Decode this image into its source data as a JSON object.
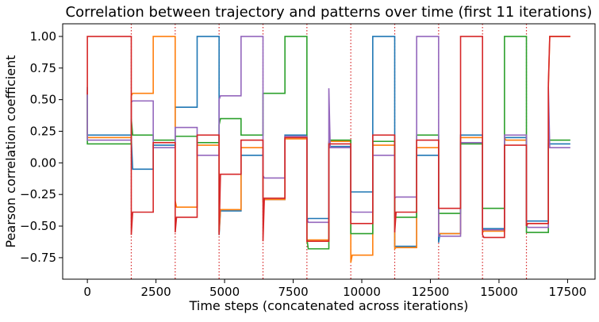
{
  "chart_data": {
    "type": "line",
    "title": "Correlation between trajectory and patterns over time (first 11 iterations)",
    "xlabel": "Time steps (concatenated across iterations)",
    "ylabel": "Pearson correlation coefficient",
    "xlim": [
      -900,
      18500
    ],
    "ylim": [
      -0.92,
      1.1
    ],
    "xticks": [
      0,
      2500,
      5000,
      7500,
      10000,
      12500,
      15000,
      17500
    ],
    "xtick_labels": [
      "0",
      "2500",
      "5000",
      "7500",
      "10000",
      "12500",
      "15000",
      "17500"
    ],
    "yticks": [
      -0.75,
      -0.5,
      -0.25,
      0.0,
      0.25,
      0.5,
      0.75,
      1.0
    ],
    "ytick_labels": [
      "−0.75",
      "−0.50",
      "−0.25",
      "0.00",
      "0.25",
      "0.50",
      "0.75",
      "1.00"
    ],
    "grid": false,
    "legend": "none",
    "iteration_boundaries": [
      1600,
      3200,
      4800,
      6400,
      8000,
      9600,
      11200,
      12800,
      14400,
      16000
    ],
    "boundary_style": {
      "color": "#d62728",
      "linestyle": "dotted"
    },
    "segments": [
      {
        "start": 0,
        "plateau_start": 0,
        "plateau_end": 1600
      },
      {
        "start": 1600,
        "plateau_start": 1650,
        "plateau_end": 2400
      },
      {
        "start": 2400,
        "plateau_start": 2400,
        "plateau_end": 3200
      },
      {
        "start": 3200,
        "plateau_start": 3250,
        "plateau_end": 4000
      },
      {
        "start": 4000,
        "plateau_start": 4000,
        "plateau_end": 4800
      },
      {
        "start": 4800,
        "plateau_start": 4850,
        "plateau_end": 5600
      },
      {
        "start": 5600,
        "plateau_start": 5600,
        "plateau_end": 6400
      },
      {
        "start": 6400,
        "plateau_start": 6450,
        "plateau_end": 7200
      },
      {
        "start": 7200,
        "plateau_start": 7200,
        "plateau_end": 8000
      },
      {
        "start": 8000,
        "plateau_start": 8050,
        "plateau_end": 8800
      },
      {
        "start": 8800,
        "plateau_start": 8850,
        "plateau_end": 9600
      },
      {
        "start": 9600,
        "plateau_start": 9650,
        "plateau_end": 10400
      },
      {
        "start": 10400,
        "plateau_start": 10400,
        "plateau_end": 11200
      },
      {
        "start": 11200,
        "plateau_start": 11250,
        "plateau_end": 12000
      },
      {
        "start": 12000,
        "plateau_start": 12000,
        "plateau_end": 12800
      },
      {
        "start": 12800,
        "plateau_start": 12850,
        "plateau_end": 13600
      },
      {
        "start": 13600,
        "plateau_start": 13600,
        "plateau_end": 14400
      },
      {
        "start": 14400,
        "plateau_start": 14450,
        "plateau_end": 15200
      },
      {
        "start": 15200,
        "plateau_start": 15250,
        "plateau_end": 16000
      },
      {
        "start": 16000,
        "plateau_start": 16050,
        "plateau_end": 16800
      },
      {
        "start": 16800,
        "plateau_start": 16850,
        "plateau_end": 17600
      }
    ],
    "series": [
      {
        "color": "#1f77b4",
        "spikes": [
          0.6,
          0.2,
          -0.05,
          0.44,
          1.0,
          -0.57,
          0.06,
          -0.29,
          0.22,
          -0.45,
          0.13,
          -0.23,
          1.0,
          -0.66,
          0.06,
          -0.63,
          0.22,
          -0.52,
          0.2,
          -0.46,
          0.15
        ],
        "plateau": [
          0.22,
          -0.05,
          0.14,
          0.44,
          1.0,
          -0.38,
          0.06,
          -0.29,
          0.22,
          -0.44,
          0.13,
          -0.23,
          1.0,
          -0.66,
          0.06,
          -0.56,
          0.22,
          -0.52,
          0.2,
          -0.46,
          0.15
        ]
      },
      {
        "color": "#ff7f0e",
        "spikes": [
          0.56,
          0.53,
          1.0,
          -0.3,
          0.14,
          -0.55,
          0.12,
          -0.3,
          0.19,
          -0.62,
          0.17,
          -0.79,
          0.14,
          -0.68,
          0.12,
          -0.56,
          0.2,
          -0.55,
          0.2,
          -0.49,
          0.6
        ],
        "plateau": [
          0.2,
          0.55,
          1.0,
          -0.35,
          0.14,
          -0.37,
          0.12,
          -0.29,
          0.19,
          -0.61,
          0.17,
          -0.73,
          0.14,
          -0.67,
          0.12,
          -0.56,
          0.2,
          -0.54,
          0.18,
          -0.48,
          1.0
        ]
      },
      {
        "color": "#2ca02c",
        "spikes": [
          0.54,
          0.35,
          0.18,
          0.21,
          0.16,
          0.3,
          0.22,
          0.55,
          1.0,
          -0.6,
          0.16,
          -0.56,
          0.17,
          -0.43,
          0.22,
          -0.4,
          0.15,
          -0.36,
          1.0,
          -0.55,
          0.18
        ],
        "plateau": [
          0.15,
          0.22,
          0.18,
          0.21,
          0.16,
          0.35,
          0.22,
          0.55,
          1.0,
          -0.68,
          0.18,
          -0.56,
          0.17,
          -0.43,
          0.22,
          -0.4,
          0.15,
          -0.36,
          1.0,
          -0.55,
          0.18
        ]
      },
      {
        "color": "#9467bd",
        "spikes": [
          0.58,
          0.48,
          0.12,
          0.28,
          0.06,
          0.5,
          1.0,
          -0.1,
          0.21,
          -0.44,
          0.59,
          -0.38,
          0.06,
          -0.28,
          1.0,
          -0.58,
          0.17,
          -0.53,
          0.22,
          -0.49,
          0.6
        ],
        "plateau": [
          0.18,
          0.49,
          0.12,
          0.28,
          0.06,
          0.53,
          1.0,
          -0.12,
          0.21,
          -0.47,
          0.12,
          -0.39,
          0.06,
          -0.27,
          1.0,
          -0.58,
          0.16,
          -0.53,
          0.22,
          -0.51,
          0.12
        ]
      },
      {
        "color": "#d62728",
        "spikes": [
          0.54,
          -0.57,
          0.16,
          -0.55,
          0.22,
          -0.57,
          0.18,
          -0.62,
          0.2,
          -0.62,
          0.15,
          -0.48,
          0.22,
          -0.55,
          0.18,
          -0.36,
          1.0,
          -0.57,
          0.14,
          -0.5,
          0.63
        ],
        "plateau": [
          1.0,
          -0.39,
          0.16,
          -0.43,
          0.22,
          -0.09,
          0.18,
          -0.28,
          0.2,
          -0.62,
          0.15,
          -0.48,
          0.22,
          -0.39,
          0.18,
          -0.36,
          1.0,
          -0.59,
          0.14,
          -0.48,
          1.0
        ]
      }
    ]
  }
}
